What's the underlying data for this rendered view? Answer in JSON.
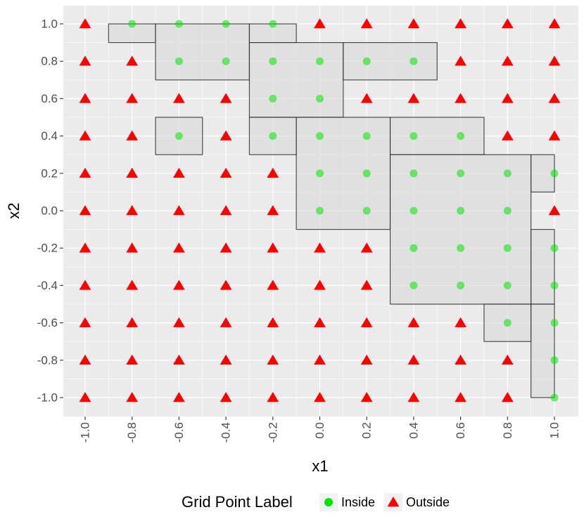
{
  "chart_data": {
    "type": "scatter",
    "xlabel": "x1",
    "ylabel": "x2",
    "xlim": [
      -1.0,
      1.0
    ],
    "ylim": [
      -1.0,
      1.0
    ],
    "x_ticks": [
      "-1.0",
      "-0.8",
      "-0.6",
      "-0.4",
      "-0.2",
      "0.0",
      "0.2",
      "0.4",
      "0.6",
      "0.8",
      "1.0"
    ],
    "y_ticks": [
      "1.0",
      "0.8",
      "0.6",
      "0.4",
      "0.2",
      "0.0",
      "-0.2",
      "-0.4",
      "-0.6",
      "-0.8",
      "-1.0"
    ],
    "x_tick_values": [
      -1.0,
      -0.8,
      -0.6,
      -0.4,
      -0.2,
      0.0,
      0.2,
      0.4,
      0.6,
      0.8,
      1.0
    ],
    "y_tick_values": [
      1.0,
      0.8,
      0.6,
      0.4,
      0.2,
      0.0,
      -0.2,
      -0.4,
      -0.6,
      -0.8,
      -1.0
    ],
    "grid": true,
    "legend": {
      "title": "Grid Point Label",
      "placement": "bottom",
      "entries": [
        {
          "label": "Inside",
          "shape": "circle",
          "color": "#00e600"
        },
        {
          "label": "Outside",
          "shape": "triangle",
          "color": "#ff0000"
        }
      ]
    },
    "colors": {
      "inside": "#00e600",
      "outside": "#ff0000",
      "panel": "#ebebeb",
      "rect_fill": "#d9d9d9",
      "rect_stroke": "#333333"
    },
    "rectangles": [
      {
        "x": [
          -0.9,
          -0.7
        ],
        "y": [
          0.9,
          1.0
        ]
      },
      {
        "x": [
          -0.7,
          -0.3
        ],
        "y": [
          0.7,
          1.0
        ]
      },
      {
        "x": [
          -0.3,
          -0.1
        ],
        "y": [
          0.9,
          1.0
        ]
      },
      {
        "x": [
          -0.3,
          0.1
        ],
        "y": [
          0.5,
          0.9
        ]
      },
      {
        "x": [
          0.1,
          0.5
        ],
        "y": [
          0.7,
          0.9
        ]
      },
      {
        "x": [
          -0.7,
          -0.5
        ],
        "y": [
          0.3,
          0.5
        ]
      },
      {
        "x": [
          -0.3,
          -0.1
        ],
        "y": [
          0.3,
          0.5
        ]
      },
      {
        "x": [
          -0.1,
          0.3
        ],
        "y": [
          -0.1,
          0.5
        ]
      },
      {
        "x": [
          0.3,
          0.7
        ],
        "y": [
          0.3,
          0.5
        ]
      },
      {
        "x": [
          0.3,
          0.9
        ],
        "y": [
          -0.5,
          0.3
        ]
      },
      {
        "x": [
          0.9,
          1.0
        ],
        "y": [
          0.1,
          0.3
        ]
      },
      {
        "x": [
          0.9,
          1.0
        ],
        "y": [
          -0.5,
          -0.1
        ]
      },
      {
        "x": [
          0.7,
          0.9
        ],
        "y": [
          -0.7,
          -0.5
        ]
      },
      {
        "x": [
          0.9,
          1.0
        ],
        "y": [
          -1.0,
          -0.5
        ]
      }
    ],
    "inside_points": [
      [
        -0.8,
        1.0
      ],
      [
        -0.6,
        1.0
      ],
      [
        -0.4,
        1.0
      ],
      [
        -0.2,
        1.0
      ],
      [
        -0.6,
        0.8
      ],
      [
        -0.4,
        0.8
      ],
      [
        -0.2,
        0.8
      ],
      [
        0.0,
        0.8
      ],
      [
        0.2,
        0.8
      ],
      [
        0.4,
        0.8
      ],
      [
        -0.2,
        0.6
      ],
      [
        0.0,
        0.6
      ],
      [
        -0.6,
        0.4
      ],
      [
        -0.2,
        0.4
      ],
      [
        0.0,
        0.4
      ],
      [
        0.2,
        0.4
      ],
      [
        0.4,
        0.4
      ],
      [
        0.6,
        0.4
      ],
      [
        0.0,
        0.2
      ],
      [
        0.2,
        0.2
      ],
      [
        0.4,
        0.2
      ],
      [
        0.6,
        0.2
      ],
      [
        0.8,
        0.2
      ],
      [
        1.0,
        0.2
      ],
      [
        0.0,
        0.0
      ],
      [
        0.2,
        0.0
      ],
      [
        0.4,
        0.0
      ],
      [
        0.6,
        0.0
      ],
      [
        0.8,
        0.0
      ],
      [
        0.4,
        -0.2
      ],
      [
        0.6,
        -0.2
      ],
      [
        0.8,
        -0.2
      ],
      [
        1.0,
        -0.2
      ],
      [
        0.4,
        -0.4
      ],
      [
        0.6,
        -0.4
      ],
      [
        0.8,
        -0.4
      ],
      [
        1.0,
        -0.4
      ],
      [
        0.8,
        -0.6
      ],
      [
        1.0,
        -0.6
      ],
      [
        1.0,
        -0.8
      ],
      [
        1.0,
        -1.0
      ]
    ]
  }
}
